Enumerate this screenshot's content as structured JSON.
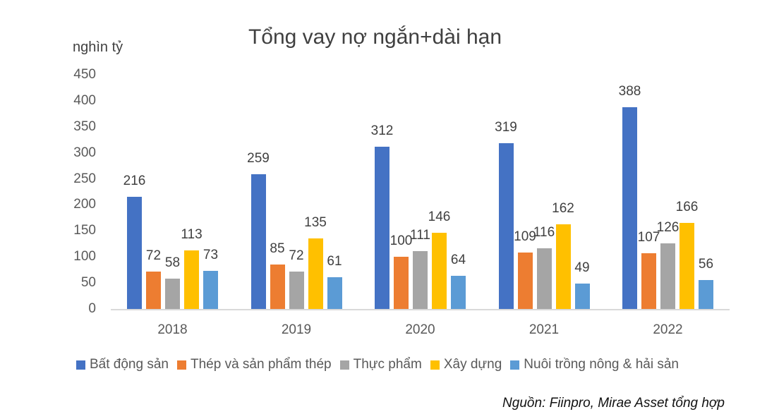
{
  "chart": {
    "title": "Tổng vay nợ ngắn+dài hạn",
    "unit_label": "nghìn tỷ",
    "source": "Nguồn: Fiinpro, Mirae Asset tổng hợp",
    "y_ticks": [
      "450",
      "400",
      "350",
      "300",
      "250",
      "200",
      "150",
      "100",
      "50",
      "0"
    ],
    "years": [
      "2018",
      "2019",
      "2020",
      "2021",
      "2022"
    ],
    "legend": [
      {
        "label": "Bất động sản",
        "color": "#4472c4"
      },
      {
        "label": "Thép và sản phẩm thép",
        "color": "#ed7d31"
      },
      {
        "label": "Thực phẩm",
        "color": "#a5a5a5"
      },
      {
        "label": "Xây dựng",
        "color": "#ffc000"
      },
      {
        "label": "Nuôi trồng nông & hải sản",
        "color": "#5b9bd5"
      }
    ]
  },
  "chart_data": {
    "type": "bar",
    "title": "Tổng vay nợ ngắn+dài hạn",
    "xlabel": "",
    "ylabel": "nghìn tỷ",
    "ylim": [
      0,
      450
    ],
    "y_ticks": [
      0,
      50,
      100,
      150,
      200,
      250,
      300,
      350,
      400,
      450
    ],
    "grid": false,
    "legend_position": "bottom",
    "categories": [
      "2018",
      "2019",
      "2020",
      "2021",
      "2022"
    ],
    "series": [
      {
        "name": "Bất động sản",
        "color": "#4472c4",
        "values": [
          216,
          259,
          312,
          319,
          388
        ]
      },
      {
        "name": "Thép và sản phẩm thép",
        "color": "#ed7d31",
        "values": [
          72,
          85,
          100,
          109,
          107
        ]
      },
      {
        "name": "Thực phẩm",
        "color": "#a5a5a5",
        "values": [
          58,
          72,
          111,
          116,
          126
        ]
      },
      {
        "name": "Xây dựng",
        "color": "#ffc000",
        "values": [
          113,
          135,
          146,
          162,
          166
        ]
      },
      {
        "name": "Nuôi trồng nông & hải sản",
        "color": "#5b9bd5",
        "values": [
          73,
          61,
          64,
          49,
          56
        ]
      }
    ],
    "annotations": [
      "Nguồn: Fiinpro, Mirae Asset tổng hợp"
    ]
  }
}
